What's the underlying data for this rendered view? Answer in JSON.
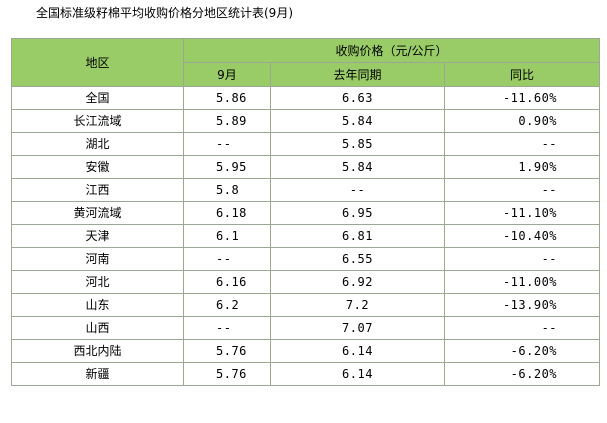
{
  "title": "全国标准级籽棉平均收购价格分地区统计表(9月)",
  "header": {
    "region": "地区",
    "price_group": "收购价格（元/公斤）",
    "month": "9月",
    "last_year": "去年同期",
    "yoy": "同比"
  },
  "rows": [
    {
      "region": "全国",
      "month": "5.86",
      "last_year": "6.63",
      "yoy": "-11.60%"
    },
    {
      "region": "长江流域",
      "month": "5.89",
      "last_year": "5.84",
      "yoy": "0.90%"
    },
    {
      "region": "湖北",
      "month": "--",
      "last_year": "5.85",
      "yoy": "--"
    },
    {
      "region": "安徽",
      "month": "5.95",
      "last_year": "5.84",
      "yoy": "1.90%"
    },
    {
      "region": "江西",
      "month": "5.8",
      "last_year": "--",
      "yoy": "--"
    },
    {
      "region": "黄河流域",
      "month": "6.18",
      "last_year": "6.95",
      "yoy": "-11.10%"
    },
    {
      "region": "天津",
      "month": "6.1",
      "last_year": "6.81",
      "yoy": "-10.40%"
    },
    {
      "region": "河南",
      "month": "--",
      "last_year": "6.55",
      "yoy": "--"
    },
    {
      "region": "河北",
      "month": "6.16",
      "last_year": "6.92",
      "yoy": "-11.00%"
    },
    {
      "region": "山东",
      "month": "6.2",
      "last_year": "7.2",
      "yoy": "-13.90%"
    },
    {
      "region": "山西",
      "month": "--",
      "last_year": "7.07",
      "yoy": "--"
    },
    {
      "region": "西北内陆",
      "month": "5.76",
      "last_year": "6.14",
      "yoy": "-6.20%"
    },
    {
      "region": "新疆",
      "month": "5.76",
      "last_year": "6.14",
      "yoy": "-6.20%"
    }
  ],
  "colors": {
    "header_bg": "#99cc66",
    "border": "#9aa894"
  }
}
